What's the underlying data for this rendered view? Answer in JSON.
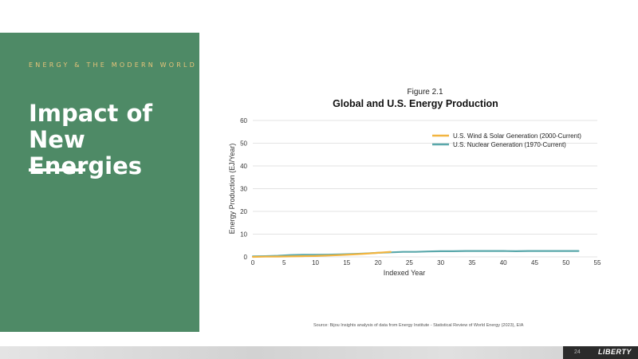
{
  "slide": {
    "eyebrow": "ENERGY & THE MODERN WORLD",
    "title": "Impact of New Energies",
    "source": "Source: Bijou Insights analysis of data from Energy Institute - Statistical Review of World Energy (2023), EIA",
    "page_number": "24",
    "logo_text": "LIBERTY"
  },
  "colors": {
    "panel": "#4e8a66",
    "eyebrow": "#e8c47a",
    "wind_solar": "#f2b540",
    "nuclear": "#5aa8ab"
  },
  "chart_data": {
    "type": "line",
    "figure_label": "Figure 2.1",
    "title": "Global and U.S. Energy Production",
    "xlabel": "Indexed Year",
    "ylabel": "Energy Production (EJ/Year)",
    "xlim": [
      0,
      55
    ],
    "ylim": [
      0,
      60
    ],
    "x_ticks": [
      0,
      5,
      10,
      15,
      20,
      25,
      30,
      35,
      40,
      45,
      50,
      55
    ],
    "y_ticks": [
      0,
      10,
      20,
      30,
      40,
      50,
      60
    ],
    "grid": true,
    "legend_position": "top-right",
    "series": [
      {
        "name": "U.S. Wind & Solar Generation (2000-Current)",
        "color": "#f2b540",
        "x": [
          0,
          2,
          4,
          6,
          8,
          10,
          12,
          14,
          16,
          18,
          20,
          22
        ],
        "y": [
          0.0,
          0.1,
          0.15,
          0.2,
          0.3,
          0.4,
          0.6,
          0.8,
          1.1,
          1.4,
          1.8,
          2.2
        ]
      },
      {
        "name": "U.S. Nuclear Generation (1970-Current)",
        "color": "#5aa8ab",
        "x": [
          0,
          2,
          4,
          6,
          8,
          10,
          12,
          14,
          16,
          18,
          20,
          22,
          24,
          26,
          28,
          30,
          32,
          34,
          36,
          38,
          40,
          42,
          44,
          46,
          48,
          50,
          52
        ],
        "y": [
          0.2,
          0.3,
          0.5,
          0.8,
          0.9,
          0.9,
          1.0,
          1.1,
          1.3,
          1.5,
          1.8,
          2.0,
          2.2,
          2.2,
          2.4,
          2.5,
          2.5,
          2.6,
          2.6,
          2.6,
          2.6,
          2.5,
          2.6,
          2.6,
          2.6,
          2.6,
          2.6
        ]
      }
    ]
  }
}
